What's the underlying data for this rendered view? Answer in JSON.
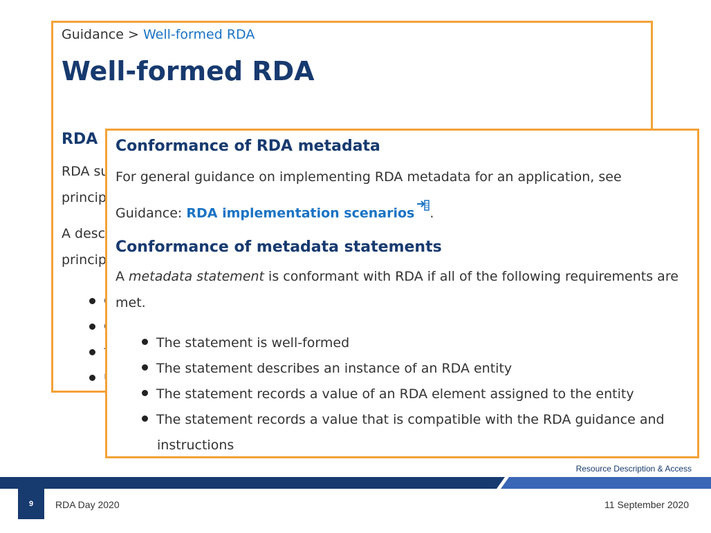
{
  "back_page": {
    "breadcrumb": {
      "parent": "Guidance",
      "separator": ">",
      "current": "Well-formed RDA"
    },
    "title": "Well-formed RDA",
    "section_heading": "RDA",
    "para1_line1": "RDA su",
    "para1_line2": "princip",
    "para2_line1": "A desc",
    "para2_line2": "princip",
    "bullets": [
      "c",
      "c",
      "f",
      "u"
    ]
  },
  "front_page": {
    "heading1": "Conformance of RDA metadata",
    "para1": "For general guidance on implementing RDA metadata for an application, see",
    "para2_prefix": "Guidance: ",
    "para2_link": "RDA implementation scenarios",
    "para2_suffix": ".",
    "heading2": "Conformance of metadata statements",
    "para3_a": "A ",
    "para3_em": "metadata statement",
    "para3_b": " is conformant with RDA if all of the following requirements are",
    "para3_line2": "met.",
    "requirements": [
      "The statement is well-formed",
      "The statement describes an instance of an RDA entity",
      "The statement records a value of an RDA element assigned to the entity",
      "The statement records a value that is compatible with the RDA guidance and"
    ],
    "requirements_last_line2": "instructions"
  },
  "footer": {
    "brand": "Resource Description & Access",
    "slide_number": "9",
    "event": "RDA Day 2020",
    "date": "11 September 2020"
  },
  "colors": {
    "border": "#f4a238",
    "navy": "#173a6f",
    "link": "#1a73c4",
    "band_light": "#3a67b6"
  }
}
